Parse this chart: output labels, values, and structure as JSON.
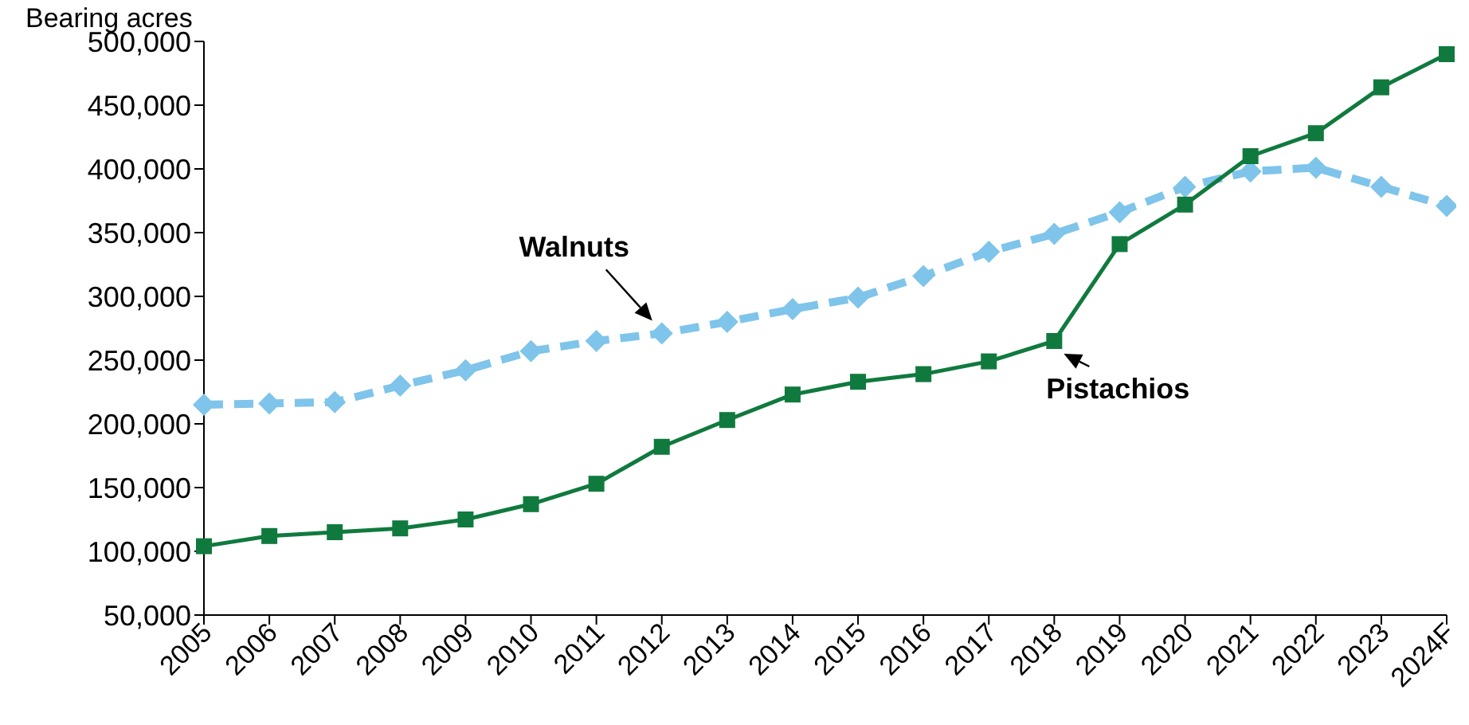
{
  "chart_data": {
    "type": "line",
    "ylabel": "Bearing acres",
    "categories": [
      "2005",
      "2006",
      "2007",
      "2008",
      "2009",
      "2010",
      "2011",
      "2012",
      "2013",
      "2014",
      "2015",
      "2016",
      "2017",
      "2018",
      "2019",
      "2020",
      "2021",
      "2022",
      "2023",
      "2024F"
    ],
    "series": [
      {
        "name": "Walnuts",
        "color": "#7fc4ea",
        "marker": "diamond",
        "line_style": "dashed",
        "values": [
          215000,
          216000,
          217000,
          230000,
          242000,
          257000,
          265000,
          271000,
          280000,
          290000,
          299000,
          316000,
          335000,
          349000,
          366000,
          386000,
          398000,
          401000,
          386000,
          371000
        ]
      },
      {
        "name": "Pistachios",
        "color": "#107a3e",
        "marker": "square",
        "line_style": "solid",
        "values": [
          104000,
          112000,
          115000,
          118000,
          125000,
          137000,
          153000,
          182000,
          203000,
          223000,
          233000,
          239000,
          249000,
          265000,
          341000,
          372000,
          410000,
          428000,
          464000,
          490000
        ]
      }
    ],
    "ylim": [
      50000,
      500000
    ],
    "yticks": [
      {
        "value": 50000,
        "label": "50,000"
      },
      {
        "value": 100000,
        "label": "100,000"
      },
      {
        "value": 150000,
        "label": "150,000"
      },
      {
        "value": 200000,
        "label": "200,000"
      },
      {
        "value": 250000,
        "label": "250,000"
      },
      {
        "value": 300000,
        "label": "300,000"
      },
      {
        "value": 350000,
        "label": "350,000"
      },
      {
        "value": 400000,
        "label": "400,000"
      },
      {
        "value": 450000,
        "label": "450,000"
      },
      {
        "value": 500000,
        "label": "500,000"
      }
    ],
    "grid": false,
    "legend": false
  }
}
